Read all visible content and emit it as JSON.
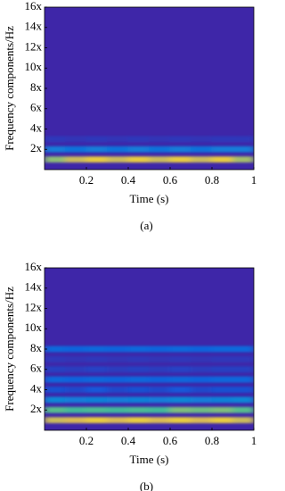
{
  "chart_data": [
    {
      "type": "heatmap",
      "caption": "(a)",
      "xlabel": "Time (s)",
      "ylabel": "Frequency components/Hz",
      "colormap": "parula",
      "zlim": [
        0,
        1
      ],
      "xlim": [
        0,
        1
      ],
      "ylim": [
        0,
        16
      ],
      "xticks": [
        0.2,
        0.4,
        0.6,
        0.8,
        1
      ],
      "yticks": [
        {
          "value": 2,
          "label": "2x"
        },
        {
          "value": 4,
          "label": "4x"
        },
        {
          "value": 6,
          "label": "6x"
        },
        {
          "value": 8,
          "label": "8x"
        },
        {
          "value": 10,
          "label": "10x"
        },
        {
          "value": 12,
          "label": "12x"
        },
        {
          "value": 14,
          "label": "14x"
        },
        {
          "value": 16,
          "label": "16x"
        }
      ],
      "x": [
        0.05,
        0.15,
        0.25,
        0.35,
        0.45,
        0.55,
        0.65,
        0.75,
        0.85,
        0.95
      ],
      "y": [
        1,
        2,
        3
      ],
      "z": [
        [
          0.82,
          0.9,
          0.95,
          0.9,
          0.95,
          0.9,
          0.95,
          0.9,
          0.95,
          0.85
        ],
        [
          0.3,
          0.25,
          0.3,
          0.25,
          0.3,
          0.25,
          0.3,
          0.25,
          0.3,
          0.3
        ],
        [
          0.05,
          0.04,
          0.05,
          0.04,
          0.05,
          0.04,
          0.05,
          0.04,
          0.05,
          0.05
        ]
      ]
    },
    {
      "type": "heatmap",
      "caption": "(b)",
      "xlabel": "Time (s)",
      "ylabel": "Frequency components/Hz",
      "colormap": "parula",
      "zlim": [
        0,
        1
      ],
      "xlim": [
        0,
        1
      ],
      "ylim": [
        0,
        16
      ],
      "xticks": [
        0.2,
        0.4,
        0.6,
        0.8,
        1
      ],
      "yticks": [
        {
          "value": 2,
          "label": "2x"
        },
        {
          "value": 4,
          "label": "4x"
        },
        {
          "value": 6,
          "label": "6x"
        },
        {
          "value": 8,
          "label": "8x"
        },
        {
          "value": 10,
          "label": "10x"
        },
        {
          "value": 12,
          "label": "12x"
        },
        {
          "value": 14,
          "label": "14x"
        },
        {
          "value": 16,
          "label": "16x"
        }
      ],
      "x": [
        0.05,
        0.15,
        0.25,
        0.35,
        0.45,
        0.55,
        0.65,
        0.75,
        0.85,
        0.95
      ],
      "y": [
        1,
        2,
        3,
        4,
        5,
        6,
        7,
        8
      ],
      "z": [
        [
          0.9,
          0.92,
          0.95,
          0.92,
          0.95,
          0.92,
          0.95,
          0.92,
          0.95,
          0.9
        ],
        [
          0.75,
          0.7,
          0.72,
          0.7,
          0.72,
          0.7,
          0.8,
          0.78,
          0.8,
          0.75
        ],
        [
          0.35,
          0.3,
          0.32,
          0.3,
          0.32,
          0.3,
          0.35,
          0.3,
          0.32,
          0.35
        ],
        [
          0.12,
          0.1,
          0.14,
          0.1,
          0.12,
          0.1,
          0.14,
          0.1,
          0.12,
          0.12
        ],
        [
          0.2,
          0.18,
          0.2,
          0.18,
          0.2,
          0.18,
          0.2,
          0.18,
          0.2,
          0.2
        ],
        [
          0.07,
          0.06,
          0.08,
          0.06,
          0.07,
          0.06,
          0.08,
          0.06,
          0.07,
          0.07
        ],
        [
          0.05,
          0.04,
          0.05,
          0.04,
          0.05,
          0.04,
          0.05,
          0.04,
          0.05,
          0.05
        ],
        [
          0.2,
          0.18,
          0.2,
          0.18,
          0.2,
          0.18,
          0.2,
          0.18,
          0.2,
          0.2
        ]
      ]
    }
  ]
}
